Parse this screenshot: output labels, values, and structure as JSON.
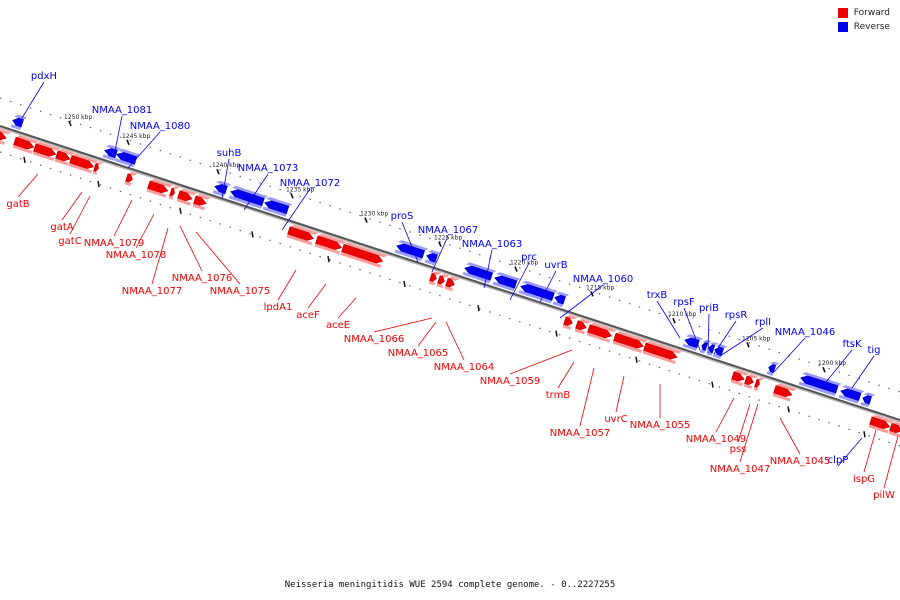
{
  "legend": [
    {
      "label": "Forward",
      "color": "#ee0000"
    },
    {
      "label": "Reverse",
      "color": "#0000ee"
    }
  ],
  "caption": "Neisseria meningitidis WUE 2594 complete genome. - 0..2227255",
  "colors": {
    "forward": "#ee0000",
    "reverse": "#0000ee",
    "backbone": "#555555"
  },
  "scale_marks": [
    "1250 kbp",
    "1245 kbp",
    "1240 kbp",
    "1235 kbp",
    "1230 kbp",
    "1225 kbp",
    "1220 kbp",
    "1215 kbp",
    "1210 kbp",
    "1205 kbp",
    "1200 kbp"
  ],
  "reverse_genes": [
    "pdxH",
    "NMAA_1081",
    "NMAA_1080",
    "suhB",
    "NMAA_1073",
    "NMAA_1072",
    "proS",
    "NMAA_1067",
    "NMAA_1063",
    "prc",
    "uvrB",
    "NMAA_1060",
    "trxB",
    "rpsF",
    "priB",
    "rpsR",
    "rplI",
    "NMAA_1046",
    "ftsK",
    "tig",
    "clpP"
  ],
  "forward_genes": [
    "gatB",
    "gatA",
    "gatC",
    "NMAA_1079",
    "NMAA_1078",
    "NMAA_1077",
    "NMAA_1076",
    "NMAA_1075",
    "lpdA1",
    "aceF",
    "aceE",
    "NMAA_1066",
    "NMAA_1065",
    "NMAA_1064",
    "NMAA_1059",
    "trmB",
    "NMAA_1057",
    "uvrC",
    "NMAA_1055",
    "NMAA_1049",
    "pss",
    "NMAA_1047",
    "NMAA_1045",
    "ispG",
    "pilW"
  ]
}
